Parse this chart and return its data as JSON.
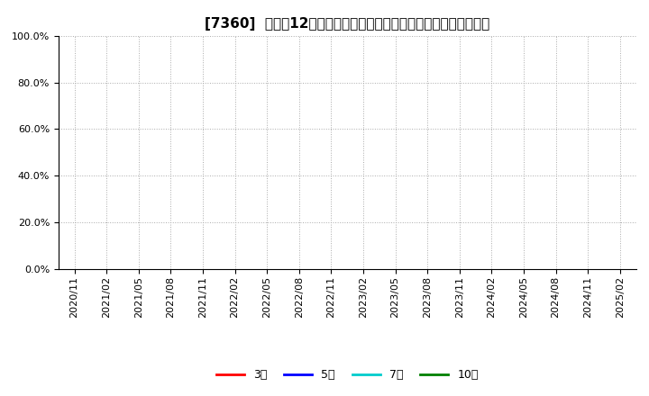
{
  "title": "[7360]  売上高12か月移動合計の対前年同期増減率の平均値の推移",
  "ylim": [
    0.0,
    1.0
  ],
  "yticks": [
    0.0,
    0.2,
    0.4,
    0.6,
    0.8,
    1.0
  ],
  "ytick_labels": [
    "0.0%",
    "20.0%",
    "40.0%",
    "60.0%",
    "80.0%",
    "100.0%"
  ],
  "xtick_labels": [
    "2020/11",
    "2021/02",
    "2021/05",
    "2021/08",
    "2021/11",
    "2022/02",
    "2022/05",
    "2022/08",
    "2022/11",
    "2023/02",
    "2023/05",
    "2023/08",
    "2023/11",
    "2024/02",
    "2024/05",
    "2024/08",
    "2024/11",
    "2025/02"
  ],
  "legend_entries": [
    {
      "label": "3年",
      "color": "#ff0000"
    },
    {
      "label": "5年",
      "color": "#0000ff"
    },
    {
      "label": "7年",
      "color": "#00cccc"
    },
    {
      "label": "10年",
      "color": "#008000"
    }
  ],
  "background_color": "#ffffff",
  "grid_color": "#aaaaaa",
  "title_fontsize": 11,
  "tick_fontsize": 8,
  "legend_fontsize": 9
}
